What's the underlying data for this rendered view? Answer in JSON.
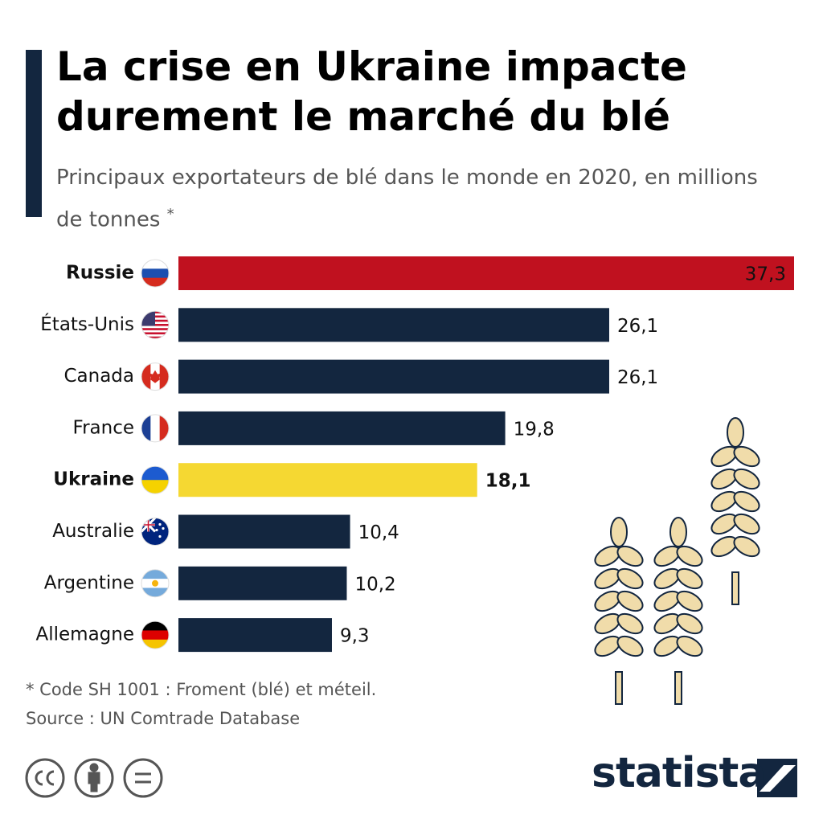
{
  "chart_data": {
    "type": "bar",
    "orientation": "horizontal",
    "title": "La crise en Ukraine impacte durement le marché du blé",
    "subtitle": "Principaux exportateurs de blé dans le monde en 2020, en millions de tonnes",
    "subtitle_marker": "*",
    "categories": [
      "Russie",
      "États-Unis",
      "Canada",
      "France",
      "Ukraine",
      "Australie",
      "Argentine",
      "Allemagne"
    ],
    "values": [
      37.3,
      26.1,
      26.1,
      19.8,
      18.1,
      10.4,
      10.2,
      9.3
    ],
    "value_labels": [
      "37,3",
      "26,1",
      "26,1",
      "19,8",
      "18,1",
      "10,4",
      "10,2",
      "9,3"
    ],
    "color": "#13263f",
    "colors": [
      "#c0111f",
      "#13263f",
      "#13263f",
      "#13263f",
      "#f5d832",
      "#13263f",
      "#13263f",
      "#13263f"
    ],
    "footnote": "* Code SH 1001 : Froment (blé) et méteil.",
    "source": "Source : UN Comtrade Database",
    "logo": "statista"
  }
}
